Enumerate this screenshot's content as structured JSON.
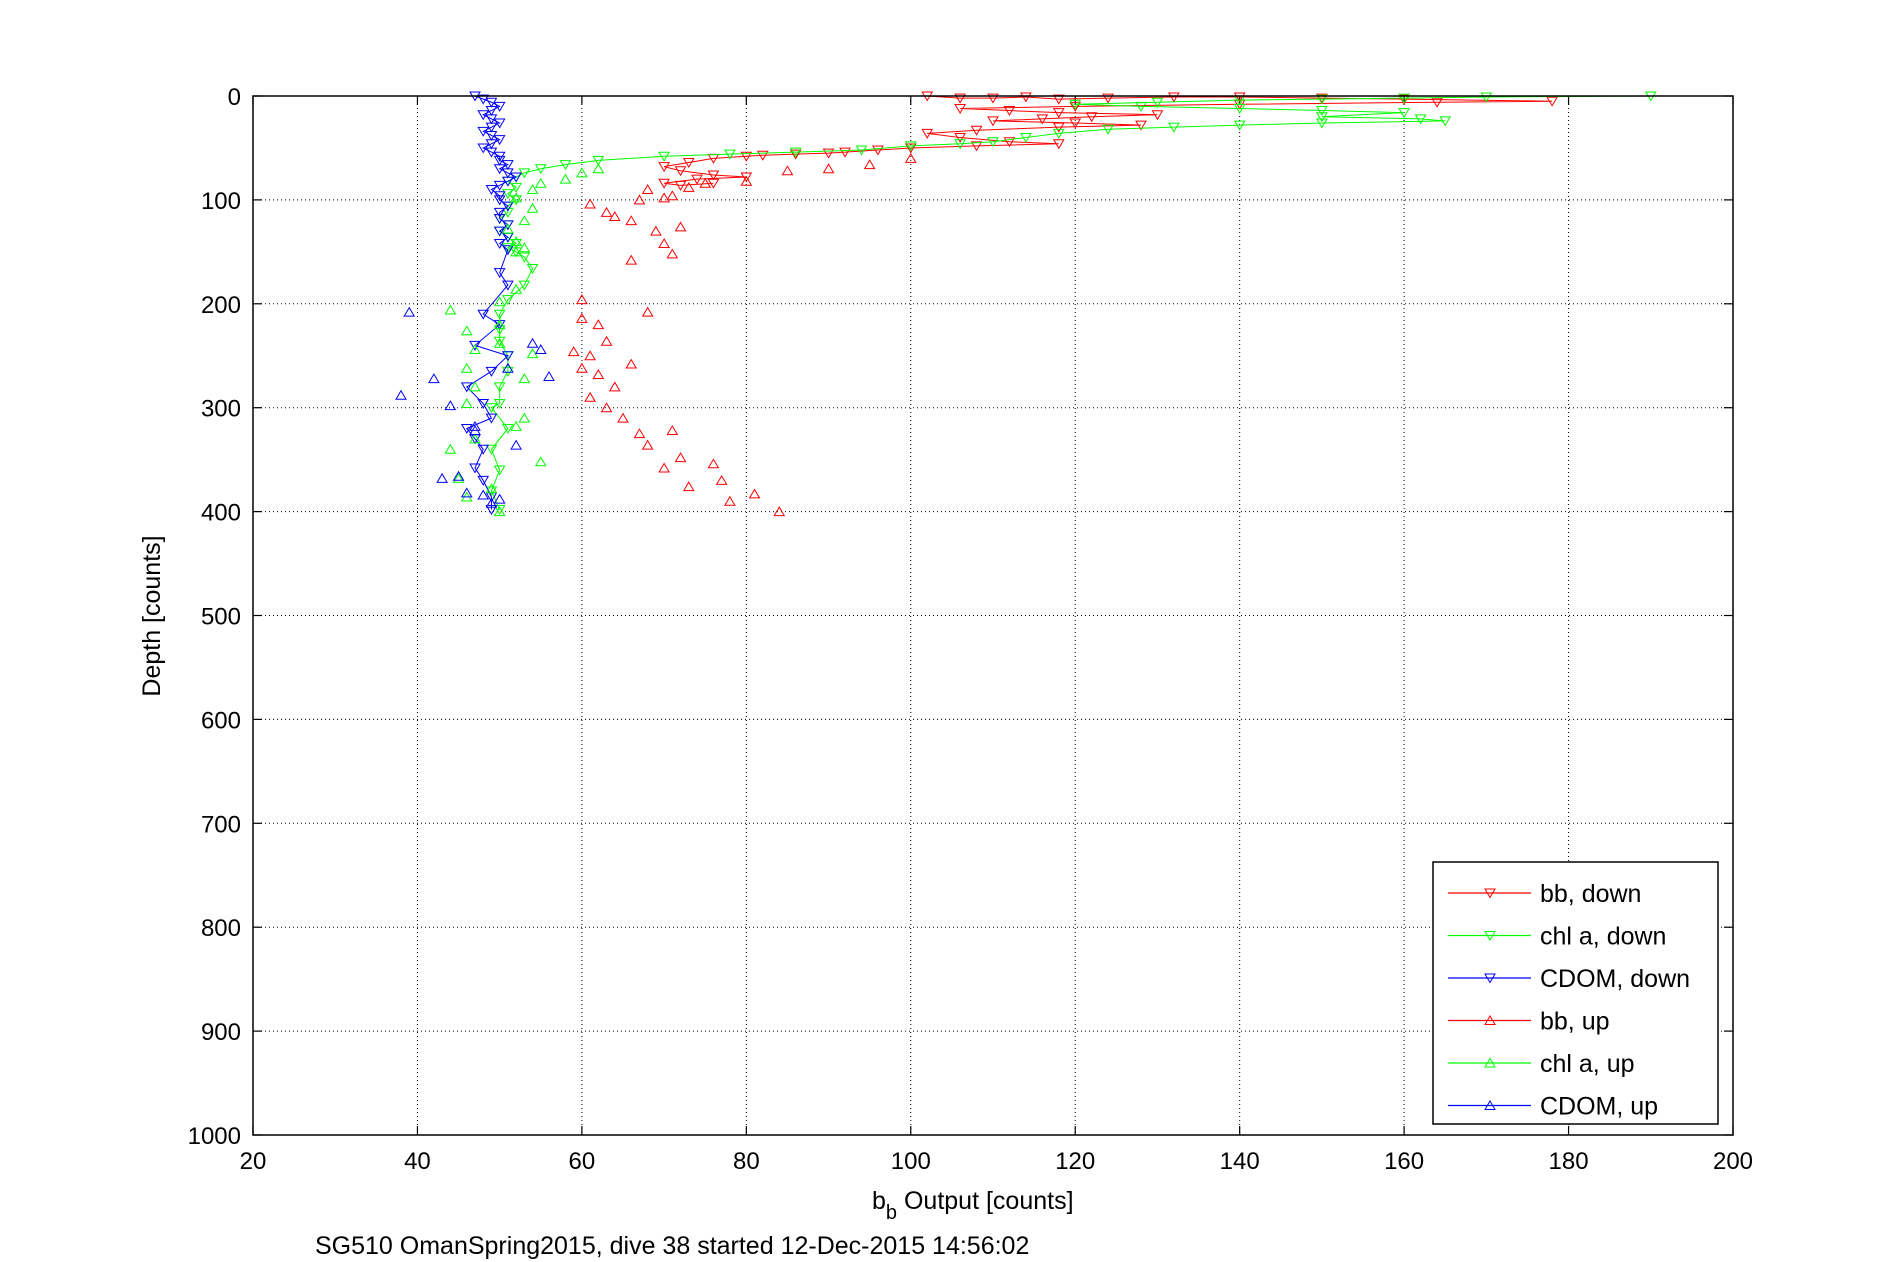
{
  "chart_data": {
    "type": "scatter",
    "xlabel_main": "b",
    "xlabel_sub": "b",
    "xlabel_rest": " Output [counts]",
    "ylabel": "Depth [counts]",
    "caption": "SG510 OmanSpring2015, dive 38 started 12-Dec-2015 14:56:02",
    "xlim": [
      20,
      200
    ],
    "ylim": [
      0,
      1000
    ],
    "y_reversed": true,
    "grid": true,
    "legend_position": "bottom-right",
    "xticks": [
      "20",
      "40",
      "60",
      "80",
      "100",
      "120",
      "140",
      "160",
      "180",
      "200"
    ],
    "yticks": [
      "0",
      "100",
      "200",
      "300",
      "400",
      "500",
      "600",
      "700",
      "800",
      "900",
      "1000"
    ],
    "series": [
      {
        "name": "bb, down",
        "color": "#ff0000",
        "marker": "triangle-down",
        "line": true,
        "points": [
          [
            102,
            0
          ],
          [
            106,
            2
          ],
          [
            110,
            2
          ],
          [
            114,
            1
          ],
          [
            118,
            3
          ],
          [
            124,
            2
          ],
          [
            132,
            1
          ],
          [
            140,
            1
          ],
          [
            150,
            2
          ],
          [
            160,
            3
          ],
          [
            178,
            5
          ],
          [
            164,
            6
          ],
          [
            140,
            8
          ],
          [
            120,
            10
          ],
          [
            106,
            12
          ],
          [
            112,
            14
          ],
          [
            118,
            16
          ],
          [
            130,
            18
          ],
          [
            122,
            20
          ],
          [
            116,
            22
          ],
          [
            110,
            24
          ],
          [
            120,
            26
          ],
          [
            128,
            28
          ],
          [
            118,
            30
          ],
          [
            108,
            33
          ],
          [
            102,
            36
          ],
          [
            106,
            40
          ],
          [
            112,
            44
          ],
          [
            118,
            46
          ],
          [
            108,
            48
          ],
          [
            100,
            50
          ],
          [
            96,
            52
          ],
          [
            92,
            54
          ],
          [
            90,
            55
          ],
          [
            86,
            56
          ],
          [
            82,
            57
          ],
          [
            80,
            58
          ],
          [
            76,
            60
          ],
          [
            73,
            64
          ],
          [
            70,
            68
          ],
          [
            72,
            72
          ],
          [
            76,
            76
          ],
          [
            80,
            78
          ],
          [
            74,
            80
          ],
          [
            70,
            84
          ],
          [
            72,
            86
          ],
          [
            76,
            84
          ]
        ]
      },
      {
        "name": "chl a, down",
        "color": "#00ff00",
        "marker": "triangle-down",
        "line": true,
        "points": [
          [
            190,
            0
          ],
          [
            170,
            1
          ],
          [
            160,
            2
          ],
          [
            150,
            3
          ],
          [
            140,
            4
          ],
          [
            130,
            6
          ],
          [
            120,
            8
          ],
          [
            128,
            10
          ],
          [
            140,
            12
          ],
          [
            150,
            14
          ],
          [
            160,
            16
          ],
          [
            150,
            20
          ],
          [
            162,
            22
          ],
          [
            165,
            24
          ],
          [
            150,
            26
          ],
          [
            140,
            28
          ],
          [
            132,
            30
          ],
          [
            124,
            32
          ],
          [
            118,
            36
          ],
          [
            114,
            40
          ],
          [
            110,
            44
          ],
          [
            106,
            46
          ],
          [
            100,
            48
          ],
          [
            94,
            52
          ],
          [
            86,
            54
          ],
          [
            78,
            56
          ],
          [
            70,
            58
          ],
          [
            62,
            62
          ],
          [
            58,
            66
          ],
          [
            55,
            70
          ],
          [
            53,
            74
          ],
          [
            52,
            78
          ],
          [
            51,
            82
          ],
          [
            52,
            88
          ],
          [
            51,
            94
          ],
          [
            52,
            100
          ],
          [
            51,
            106
          ],
          [
            51,
            112
          ],
          [
            50,
            118
          ],
          [
            51,
            124
          ],
          [
            50,
            130
          ],
          [
            51,
            136
          ],
          [
            52,
            142
          ],
          [
            51,
            146
          ],
          [
            52,
            150
          ],
          [
            53,
            155
          ],
          [
            54,
            166
          ],
          [
            53,
            182
          ],
          [
            51,
            196
          ],
          [
            50,
            210
          ],
          [
            50,
            225
          ],
          [
            50,
            236
          ],
          [
            51,
            250
          ],
          [
            51,
            265
          ],
          [
            50,
            280
          ],
          [
            50,
            296
          ],
          [
            49,
            300
          ],
          [
            51,
            320
          ],
          [
            49,
            340
          ],
          [
            50,
            360
          ],
          [
            49,
            380
          ],
          [
            50,
            398
          ]
        ]
      },
      {
        "name": "CDOM, down",
        "color": "#0000ff",
        "marker": "triangle-down",
        "line": true,
        "points": [
          [
            47,
            0
          ],
          [
            48,
            3
          ],
          [
            49,
            6
          ],
          [
            50,
            10
          ],
          [
            49,
            14
          ],
          [
            48,
            18
          ],
          [
            49,
            22
          ],
          [
            50,
            26
          ],
          [
            49,
            30
          ],
          [
            48,
            34
          ],
          [
            49,
            38
          ],
          [
            50,
            42
          ],
          [
            49,
            46
          ],
          [
            48,
            50
          ],
          [
            49,
            54
          ],
          [
            50,
            58
          ],
          [
            50,
            62
          ],
          [
            51,
            66
          ],
          [
            50,
            70
          ],
          [
            51,
            74
          ],
          [
            52,
            78
          ],
          [
            51,
            82
          ],
          [
            50,
            86
          ],
          [
            49,
            90
          ],
          [
            50,
            96
          ],
          [
            50,
            100
          ],
          [
            51,
            106
          ],
          [
            50,
            112
          ],
          [
            50,
            118
          ],
          [
            51,
            124
          ],
          [
            50,
            130
          ],
          [
            51,
            136
          ],
          [
            50,
            142
          ],
          [
            51,
            148
          ],
          [
            50,
            170
          ],
          [
            51,
            182
          ],
          [
            48,
            210
          ],
          [
            50,
            220
          ],
          [
            47,
            240
          ],
          [
            51,
            250
          ],
          [
            49,
            265
          ],
          [
            46,
            280
          ],
          [
            48,
            296
          ],
          [
            49,
            310
          ],
          [
            46,
            320
          ],
          [
            47,
            330
          ],
          [
            48,
            340
          ],
          [
            47,
            358
          ],
          [
            48,
            370
          ],
          [
            49,
            386
          ],
          [
            49,
            398
          ]
        ]
      },
      {
        "name": "bb, up",
        "color": "#ff0000",
        "marker": "triangle-up",
        "line": false,
        "points": [
          [
            84,
            400
          ],
          [
            81,
            383
          ],
          [
            78,
            390
          ],
          [
            77,
            370
          ],
          [
            73,
            376
          ],
          [
            76,
            354
          ],
          [
            70,
            358
          ],
          [
            72,
            348
          ],
          [
            68,
            336
          ],
          [
            71,
            322
          ],
          [
            67,
            325
          ],
          [
            65,
            310
          ],
          [
            63,
            300
          ],
          [
            61,
            290
          ],
          [
            64,
            280
          ],
          [
            62,
            268
          ],
          [
            66,
            258
          ],
          [
            60,
            262
          ],
          [
            61,
            250
          ],
          [
            59,
            246
          ],
          [
            63,
            236
          ],
          [
            62,
            220
          ],
          [
            60,
            214
          ],
          [
            68,
            208
          ],
          [
            60,
            196
          ],
          [
            66,
            158
          ],
          [
            71,
            152
          ],
          [
            70,
            142
          ],
          [
            69,
            130
          ],
          [
            72,
            126
          ],
          [
            66,
            120
          ],
          [
            64,
            116
          ],
          [
            63,
            112
          ],
          [
            61,
            104
          ],
          [
            67,
            100
          ],
          [
            70,
            98
          ],
          [
            68,
            90
          ],
          [
            71,
            96
          ],
          [
            73,
            88
          ],
          [
            75,
            84
          ],
          [
            80,
            82
          ],
          [
            85,
            72
          ],
          [
            90,
            70
          ],
          [
            95,
            66
          ],
          [
            100,
            60
          ]
        ]
      },
      {
        "name": "chl a, up",
        "color": "#00ff00",
        "marker": "triangle-up",
        "line": false,
        "points": [
          [
            50,
            400
          ],
          [
            46,
            386
          ],
          [
            49,
            378
          ],
          [
            45,
            368
          ],
          [
            44,
            340
          ],
          [
            47,
            330
          ],
          [
            52,
            318
          ],
          [
            55,
            352
          ],
          [
            53,
            310
          ],
          [
            46,
            296
          ],
          [
            47,
            280
          ],
          [
            53,
            272
          ],
          [
            46,
            262
          ],
          [
            54,
            248
          ],
          [
            47,
            244
          ],
          [
            50,
            238
          ],
          [
            46,
            226
          ],
          [
            50,
            220
          ],
          [
            44,
            206
          ],
          [
            50,
            198
          ],
          [
            52,
            186
          ],
          [
            52,
            150
          ],
          [
            53,
            146
          ],
          [
            52,
            140
          ],
          [
            51,
            128
          ],
          [
            53,
            120
          ],
          [
            54,
            108
          ],
          [
            52,
            98
          ],
          [
            54,
            90
          ],
          [
            55,
            84
          ],
          [
            58,
            80
          ],
          [
            60,
            74
          ],
          [
            62,
            70
          ]
        ]
      },
      {
        "name": "CDOM, up",
        "color": "#0000ff",
        "marker": "triangle-up",
        "line": false,
        "points": [
          [
            39,
            208
          ],
          [
            38,
            288
          ],
          [
            42,
            272
          ],
          [
            44,
            298
          ],
          [
            45,
            366
          ],
          [
            43,
            368
          ],
          [
            46,
            382
          ],
          [
            48,
            384
          ],
          [
            47,
            318
          ],
          [
            47,
            322
          ],
          [
            50,
            388
          ],
          [
            51,
            262
          ],
          [
            54,
            238
          ],
          [
            55,
            244
          ],
          [
            56,
            270
          ],
          [
            52,
            336
          ],
          [
            49,
            392
          ]
        ]
      }
    ]
  }
}
